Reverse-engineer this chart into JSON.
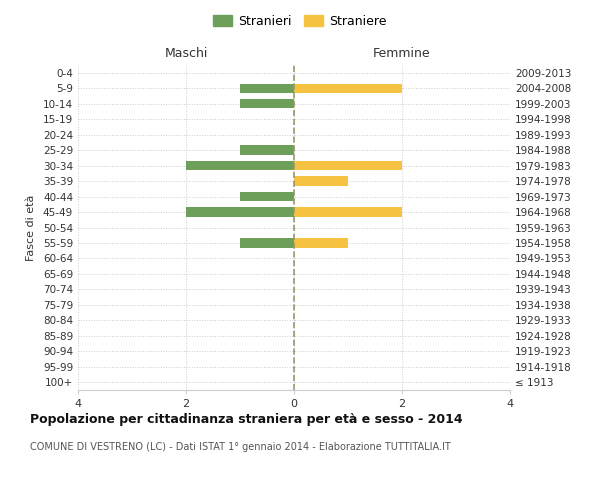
{
  "age_groups": [
    "100+",
    "95-99",
    "90-94",
    "85-89",
    "80-84",
    "75-79",
    "70-74",
    "65-69",
    "60-64",
    "55-59",
    "50-54",
    "45-49",
    "40-44",
    "35-39",
    "30-34",
    "25-29",
    "20-24",
    "15-19",
    "10-14",
    "5-9",
    "0-4"
  ],
  "birth_years": [
    "≤ 1913",
    "1914-1918",
    "1919-1923",
    "1924-1928",
    "1929-1933",
    "1934-1938",
    "1939-1943",
    "1944-1948",
    "1949-1953",
    "1954-1958",
    "1959-1963",
    "1964-1968",
    "1969-1973",
    "1974-1978",
    "1979-1983",
    "1984-1988",
    "1989-1993",
    "1994-1998",
    "1999-2003",
    "2004-2008",
    "2009-2013"
  ],
  "males": [
    0,
    0,
    0,
    0,
    0,
    0,
    0,
    0,
    0,
    1,
    0,
    2,
    1,
    0,
    2,
    1,
    0,
    0,
    1,
    1,
    0
  ],
  "females": [
    0,
    0,
    0,
    0,
    0,
    0,
    0,
    0,
    0,
    1,
    0,
    2,
    0,
    1,
    2,
    0,
    0,
    0,
    0,
    2,
    0
  ],
  "male_color": "#6d9e5a",
  "female_color": "#f5c242",
  "title": "Popolazione per cittadinanza straniera per età e sesso - 2014",
  "subtitle": "COMUNE DI VESTRENO (LC) - Dati ISTAT 1° gennaio 2014 - Elaborazione TUTTITALIA.IT",
  "xlabel_left": "Maschi",
  "xlabel_right": "Femmine",
  "ylabel_left": "Fasce di età",
  "legend_male": "Stranieri",
  "legend_female": "Straniere",
  "xlim": 4,
  "background_color": "#ffffff",
  "grid_color": "#cccccc",
  "zero_line_color": "#999966",
  "text_color": "#333333"
}
